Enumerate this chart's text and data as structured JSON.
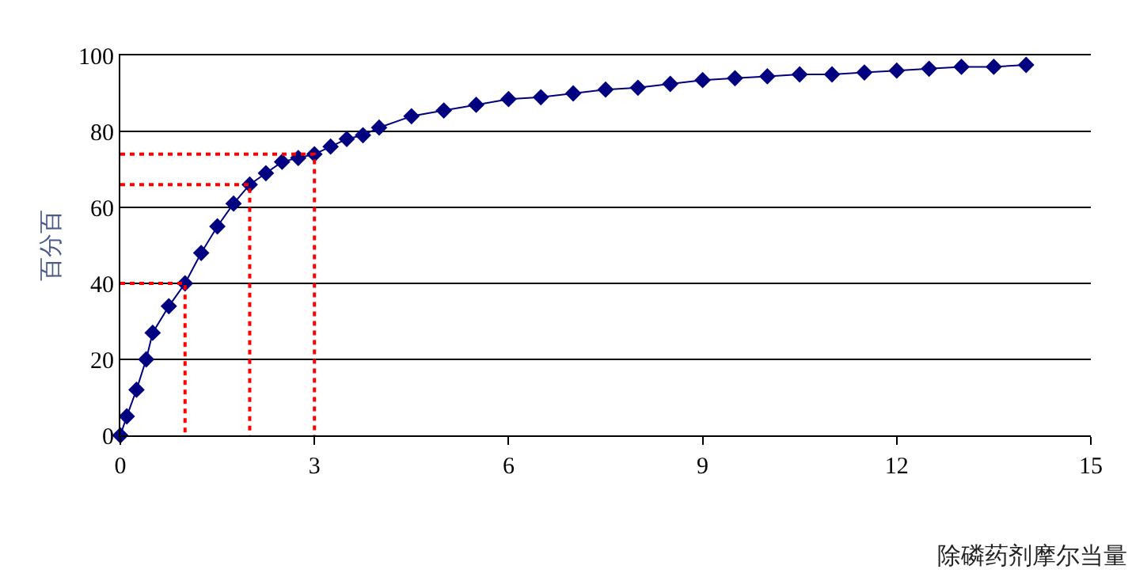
{
  "chart_data": {
    "type": "line",
    "xlabel": "除磷药剂摩尔当量",
    "ylabel": "百分百",
    "xlim": [
      0,
      15
    ],
    "xticks": [
      0,
      3,
      6,
      9,
      12,
      15
    ],
    "ylim": [
      0,
      100
    ],
    "yticks": [
      0,
      20,
      40,
      60,
      80,
      100
    ],
    "grid": "y",
    "series": [
      {
        "marker": "diamond",
        "color": "#000080",
        "x": [
          0,
          0.1,
          0.25,
          0.4,
          0.5,
          0.75,
          1,
          1.25,
          1.5,
          1.75,
          2,
          2.25,
          2.5,
          2.75,
          3,
          3.25,
          3.5,
          3.75,
          4,
          4.5,
          5,
          5.5,
          6,
          6.5,
          7,
          7.5,
          8,
          8.5,
          9,
          9.5,
          10,
          10.5,
          11,
          11.5,
          12,
          12.5,
          13,
          13.5,
          14
        ],
        "values": [
          0,
          5,
          12,
          20,
          27,
          34,
          40,
          48,
          55,
          61,
          66,
          69,
          72,
          73,
          74,
          76,
          78,
          79,
          81,
          84,
          85.5,
          87,
          88.5,
          89,
          90,
          91,
          91.5,
          92.5,
          93.5,
          94,
          94.5,
          95,
          95,
          95.5,
          96,
          96.5,
          97,
          97,
          97.5
        ]
      },
      {
        "type": "line",
        "marker": "none",
        "line_style": "dotted",
        "color": "#ff0000",
        "x": [
          0,
          1,
          1
        ],
        "values": [
          40,
          40,
          0
        ]
      },
      {
        "type": "line",
        "marker": "none",
        "line_style": "dotted",
        "color": "#ff0000",
        "x": [
          0,
          2,
          2
        ],
        "values": [
          66,
          66,
          0
        ]
      },
      {
        "type": "line",
        "marker": "none",
        "line_style": "dotted",
        "color": "#ff0000",
        "x": [
          0,
          3,
          3
        ],
        "values": [
          74,
          74,
          0
        ]
      }
    ]
  }
}
